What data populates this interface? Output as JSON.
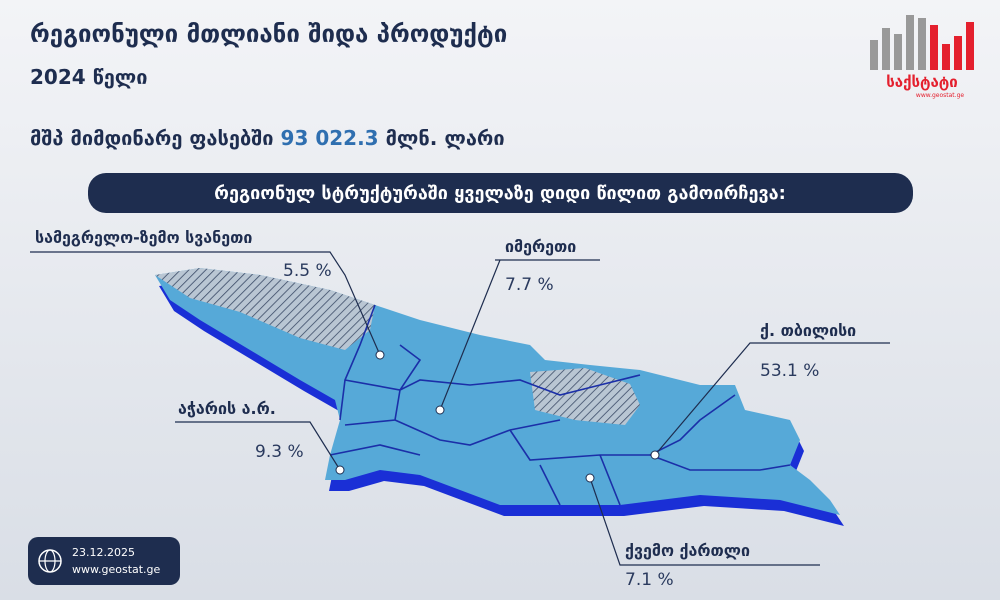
{
  "header": {
    "title": "რეგიონული მთლიანი შიდა პროდუქტი",
    "subtitle": "2024 წელი",
    "total": {
      "label": "მშპ მიმდინარე ფასებში",
      "value": "93 022.3",
      "unit": "მლნ. ლარი"
    }
  },
  "banner": "რეგიონულ სტრუქტურაში ყველაზე დიდი წილით გამოირჩევა:",
  "regions": [
    {
      "label": "სამეგრელო-ზემო სვანეთი",
      "value": "5.5 %"
    },
    {
      "label": "იმერეთი",
      "value": "7.7 %"
    },
    {
      "label": "ქ. თბილისი",
      "value": "53.1 %"
    },
    {
      "label": "აჭარის ა.რ.",
      "value": "9.3 %"
    },
    {
      "label": "ქვემო ქართლი",
      "value": "7.1 %"
    }
  ],
  "footer": {
    "date": "23.12.2025",
    "url": "www.geostat.ge"
  },
  "logo": {
    "name": "საქსტატი",
    "url": "www.geostat.ge"
  }
}
